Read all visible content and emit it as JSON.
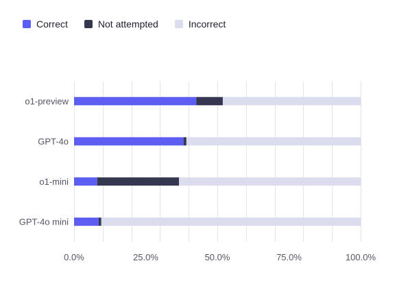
{
  "chart_data": {
    "type": "bar",
    "orientation": "horizontal",
    "stacked": true,
    "categories": [
      "o1-preview",
      "GPT-4o",
      "o1-mini",
      "GPT-4o mini"
    ],
    "series": [
      {
        "name": "Correct",
        "color": "#5b5ef0",
        "values": [
          42.7,
          38.2,
          8.1,
          8.6
        ]
      },
      {
        "name": "Not attempted",
        "color": "#34374f",
        "values": [
          9.2,
          1.0,
          28.5,
          0.9
        ]
      },
      {
        "name": "Incorrect",
        "color": "#dcdcef",
        "values": [
          48.1,
          60.8,
          63.4,
          90.5
        ]
      }
    ],
    "xlim": [
      0,
      100
    ],
    "x_ticks": [
      "0.0%",
      "25.0%",
      "50.0%",
      "75.0%",
      "100.0%"
    ],
    "grid": true,
    "legend_position": "top-left",
    "title": "",
    "xlabel": "",
    "ylabel": ""
  }
}
